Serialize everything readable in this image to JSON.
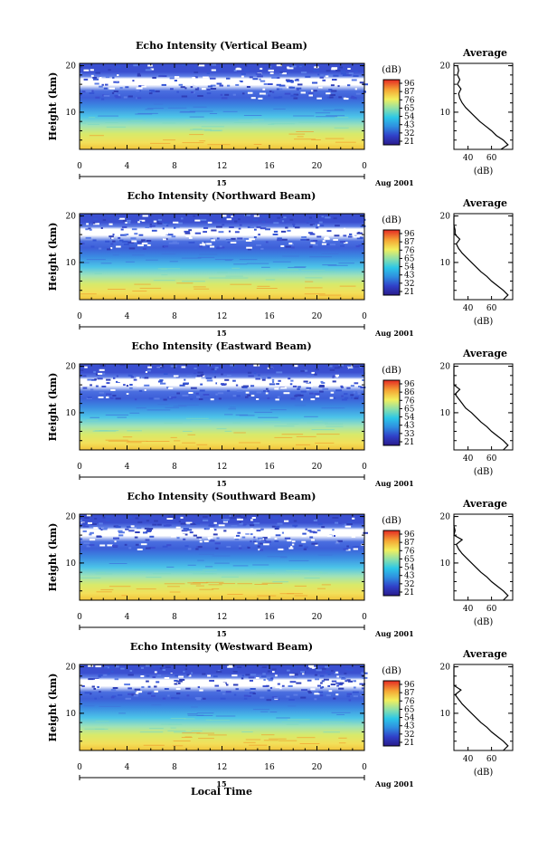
{
  "chart_data": {
    "type": "heatmap",
    "xlabel": "Local Time",
    "date_label": "Aug 2001",
    "day_label": "15",
    "x_ticks": [
      "0",
      "4",
      "8",
      "12",
      "16",
      "20",
      "0"
    ],
    "xlim": [
      0,
      24
    ],
    "ylim": [
      2,
      20.5
    ],
    "y_ticks": [
      10,
      20
    ],
    "ylabel": "Height (km)",
    "colorbar": {
      "unit": "(dB)",
      "ticks": [
        "96",
        "87",
        "76",
        "65",
        "54",
        "43",
        "32",
        "21"
      ],
      "range": [
        21,
        96
      ]
    },
    "profile_title": "Average",
    "profile_xlabel": "(dB)",
    "profile_x_ticks": [
      40,
      60
    ],
    "panels": [
      {
        "title": "Echo Intensity (Vertical Beam)",
        "colorbar_ticks": [
          "96",
          "87",
          "76",
          "65",
          "54",
          "43",
          "32",
          "21"
        ],
        "average_profile": {
          "height_km": [
            2,
            3,
            4,
            5,
            6,
            7,
            8,
            9,
            10,
            11,
            12,
            13,
            14,
            15,
            16,
            17,
            18,
            19,
            20
          ],
          "db": [
            68,
            74,
            70,
            64,
            60,
            55,
            50,
            46,
            42,
            38,
            35,
            33,
            32,
            34,
            31,
            33,
            31,
            32,
            31
          ]
        }
      },
      {
        "title": "Echo Intensity (Northward Beam)",
        "colorbar_ticks": [
          "96",
          "87",
          "76",
          "65",
          "54",
          "43",
          "32",
          "21"
        ],
        "average_profile": {
          "height_km": [
            2,
            3,
            4,
            5,
            6,
            7,
            8,
            9,
            10,
            11,
            12,
            13,
            14,
            15,
            16,
            17,
            18,
            19,
            20
          ],
          "db": [
            70,
            74,
            70,
            65,
            60,
            56,
            51,
            47,
            43,
            39,
            35,
            32,
            30,
            33,
            29,
            29,
            27,
            28,
            27
          ]
        }
      },
      {
        "title": "Echo Intensity (Eastward Beam)",
        "colorbar_ticks": [
          "96",
          "86",
          "76",
          "65",
          "54",
          "43",
          "33",
          "21"
        ],
        "average_profile": {
          "height_km": [
            2,
            3,
            4,
            5,
            6,
            7,
            8,
            9,
            10,
            11,
            12,
            13,
            14,
            15,
            16,
            17,
            18,
            19,
            20
          ],
          "db": [
            70,
            74,
            70,
            65,
            60,
            56,
            51,
            47,
            43,
            38,
            35,
            32,
            29,
            33,
            28,
            28,
            27,
            27,
            27
          ]
        }
      },
      {
        "title": "Echo Intensity (Southward Beam)",
        "colorbar_ticks": [
          "96",
          "87",
          "76",
          "65",
          "54",
          "43",
          "32",
          "21"
        ],
        "average_profile": {
          "height_km": [
            2,
            3,
            4,
            5,
            6,
            7,
            8,
            9,
            10,
            11,
            12,
            13,
            14,
            15,
            16,
            17,
            18,
            19,
            20
          ],
          "db": [
            70,
            74,
            70,
            65,
            60,
            56,
            51,
            47,
            43,
            39,
            35,
            32,
            30,
            35,
            28,
            29,
            27,
            28,
            27
          ]
        }
      },
      {
        "title": "Echo Intensity (Westward Beam)",
        "colorbar_ticks": [
          "96",
          "87",
          "76",
          "65",
          "54",
          "43",
          "32",
          "21"
        ],
        "average_profile": {
          "height_km": [
            2,
            3,
            4,
            5,
            6,
            7,
            8,
            9,
            10,
            11,
            12,
            13,
            14,
            15,
            16,
            17,
            18,
            19,
            20
          ],
          "db": [
            70,
            74,
            70,
            65,
            60,
            56,
            51,
            47,
            43,
            39,
            35,
            32,
            29,
            34,
            28,
            28,
            27,
            27,
            27
          ]
        }
      }
    ]
  }
}
